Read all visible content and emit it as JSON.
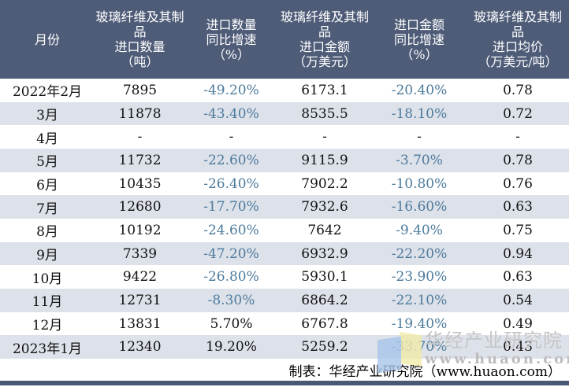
{
  "colors": {
    "header_bg": "#4e5c78",
    "stripe_bg": "#dde1ea",
    "negative_value": "#4d7b9c",
    "text": "#121212",
    "bottom_bar": "#4a5873",
    "watermark_blue": "#a9c6ea",
    "watermark_yellow": "#f2ecab"
  },
  "chart_data": {
    "type": "table",
    "columns": [
      "月份",
      "玻璃纤维及其制\n品\n进口数量\n（吨）",
      "进口数量\n同比增速\n（%）",
      "玻璃纤维及其制\n品\n进口金额\n（万美元）",
      "进口金额\n同比增速\n（%）",
      "玻璃纤维及其制\n品\n进口均价\n（万美元/吨）"
    ],
    "rows": [
      [
        "2022年2月",
        "7895",
        "-49.20%",
        "6173.1",
        "-20.40%",
        "0.78"
      ],
      [
        "3月",
        "11878",
        "-43.40%",
        "8535.5",
        "-18.10%",
        "0.72"
      ],
      [
        "4月",
        "-",
        "-",
        "-",
        "-",
        "-"
      ],
      [
        "5月",
        "11732",
        "-22.60%",
        "9115.9",
        "-3.70%",
        "0.78"
      ],
      [
        "6月",
        "10435",
        "-26.40%",
        "7902.2",
        "-10.80%",
        "0.76"
      ],
      [
        "7月",
        "12680",
        "-17.70%",
        "7932.6",
        "-16.60%",
        "0.63"
      ],
      [
        "8月",
        "10192",
        "-24.60%",
        "7642",
        "-9.40%",
        "0.75"
      ],
      [
        "9月",
        "7339",
        "-47.20%",
        "6932.9",
        "-22.20%",
        "0.94"
      ],
      [
        "10月",
        "9422",
        "-26.80%",
        "5930.1",
        "-23.90%",
        "0.63"
      ],
      [
        "11月",
        "12731",
        "-8.30%",
        "6864.2",
        "-22.10%",
        "0.54"
      ],
      [
        "12月",
        "13831",
        "5.70%",
        "6767.8",
        "-19.40%",
        "0.49"
      ],
      [
        "2023年1月",
        "12340",
        "19.20%",
        "5259.2",
        "-33.70%",
        "0.43"
      ]
    ]
  },
  "footer": {
    "credit": "制表：华经产业研究院（www.huaon.com）"
  },
  "watermark": {
    "title": "华经产业研究院",
    "url": "www.huaon.com"
  }
}
